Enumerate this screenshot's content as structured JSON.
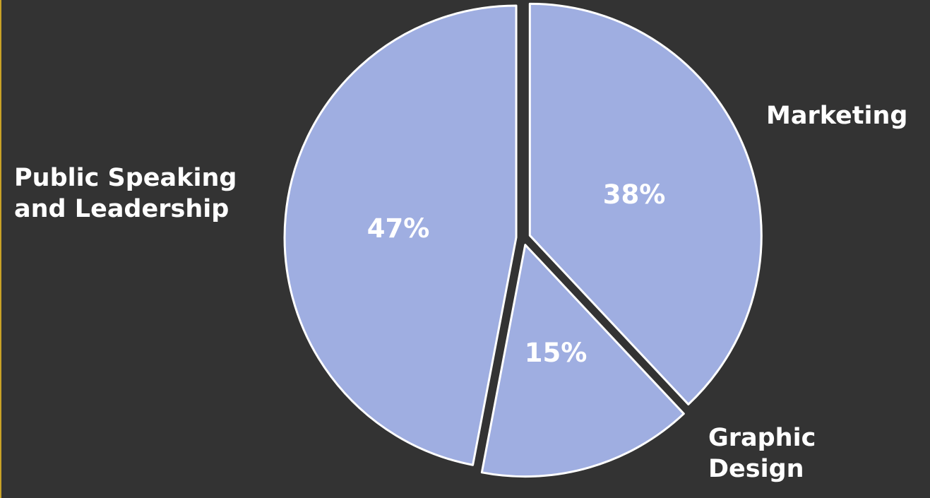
{
  "chart_data": {
    "type": "pie",
    "categories": [
      "Marketing",
      "Graphic\nDesign",
      "Public Speaking\nand Leadership"
    ],
    "values": [
      38,
      15,
      47
    ],
    "value_labels": [
      "38%",
      "15%",
      "47%"
    ],
    "slice_color": "#9FAEE1",
    "slice_border_color": "#FFFFFF",
    "background_color": "#333333",
    "label_color": "#FFFFFF",
    "exploded": true,
    "legend": "none"
  }
}
